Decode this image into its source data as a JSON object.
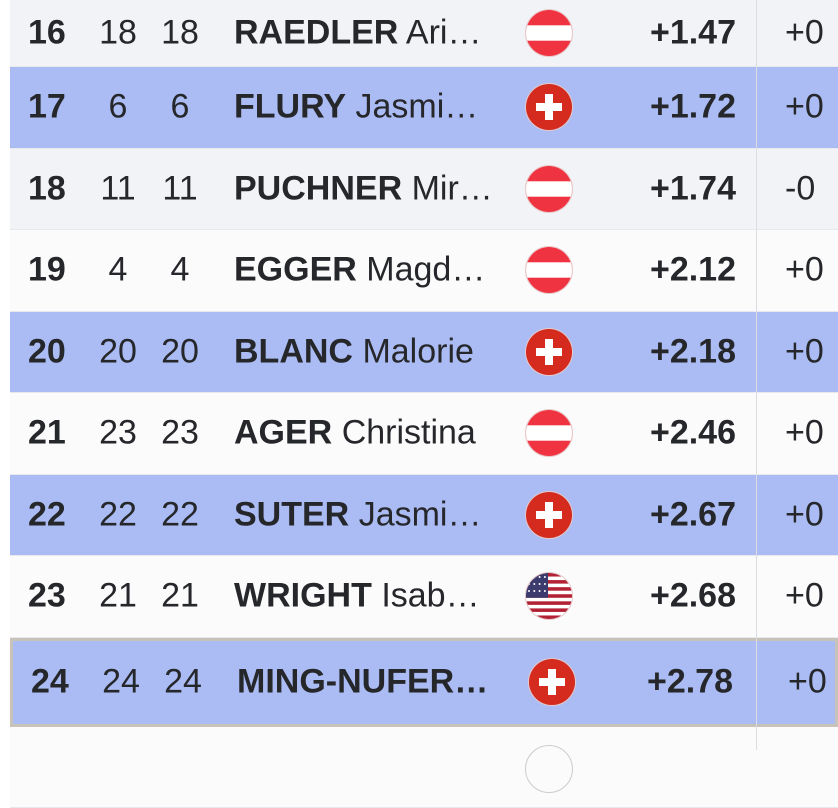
{
  "rows": [
    {
      "rank": "16",
      "col2": "18",
      "col3": "18",
      "last": "RAEDLER",
      "first": "Ari…",
      "country": "AUT",
      "flag": "austria-flag-icon",
      "time": "+1.47",
      "diff": "+0",
      "style": "gray"
    },
    {
      "rank": "17",
      "col2": "6",
      "col3": "6",
      "last": "FLURY",
      "first": "Jasmi…",
      "country": "SUI",
      "flag": "switzerland-flag-icon",
      "time": "+1.72",
      "diff": "+0",
      "style": "hl"
    },
    {
      "rank": "18",
      "col2": "11",
      "col3": "11",
      "last": "PUCHNER",
      "first": "Mir…",
      "country": "AUT",
      "flag": "austria-flag-icon",
      "time": "+1.74",
      "diff": "-0",
      "style": "gray"
    },
    {
      "rank": "19",
      "col2": "4",
      "col3": "4",
      "last": "EGGER",
      "first": "Magd…",
      "country": "AUT",
      "flag": "austria-flag-icon",
      "time": "+2.12",
      "diff": "+0",
      "style": "white"
    },
    {
      "rank": "20",
      "col2": "20",
      "col3": "20",
      "last": "BLANC",
      "first": "Malorie",
      "country": "SUI",
      "flag": "switzerland-flag-icon",
      "time": "+2.18",
      "diff": "+0",
      "style": "hl"
    },
    {
      "rank": "21",
      "col2": "23",
      "col3": "23",
      "last": "AGER",
      "first": "Christina",
      "country": "AUT",
      "flag": "austria-flag-icon",
      "time": "+2.46",
      "diff": "+0",
      "style": "white"
    },
    {
      "rank": "22",
      "col2": "22",
      "col3": "22",
      "last": "SUTER",
      "first": "Jasmi…",
      "country": "SUI",
      "flag": "switzerland-flag-icon",
      "time": "+2.67",
      "diff": "+0",
      "style": "hl"
    },
    {
      "rank": "23",
      "col2": "21",
      "col3": "21",
      "last": "WRIGHT",
      "first": "Isab…",
      "country": "USA",
      "flag": "usa-flag-icon",
      "time": "+2.68",
      "diff": "+0",
      "style": "white"
    },
    {
      "rank": "24",
      "col2": "24",
      "col3": "24",
      "last": "MING-NUFER…",
      "first": "",
      "country": "SUI",
      "flag": "switzerland-flag-icon",
      "time": "+2.78",
      "diff": "+0",
      "style": "current"
    }
  ],
  "colors": {
    "highlight": "#aabcf3",
    "current_border": "#c7c3b8",
    "red": "#e03a3e",
    "swiss_red": "#d52b1e"
  }
}
